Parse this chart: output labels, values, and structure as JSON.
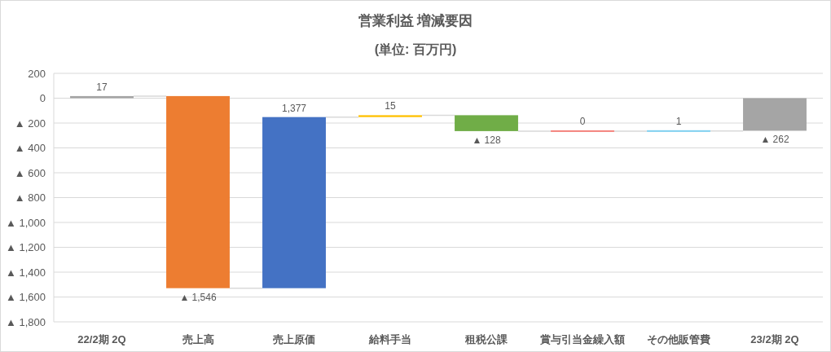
{
  "chart_data": {
    "type": "bar",
    "title": "営業利益 増減要因",
    "subtitle": "(単位: 百万円)",
    "categories": [
      "22/2期 2Q",
      "売上高",
      "売上原価",
      "給料手当",
      "租税公課",
      "賞与引当金繰入額",
      "その他販管費",
      "23/2期 2Q"
    ],
    "values": [
      17,
      -1546,
      1377,
      15,
      -128,
      0,
      1,
      -262
    ],
    "base": [
      0,
      17,
      -1529,
      -152,
      -137,
      -265,
      -265,
      0
    ],
    "colors": [
      "#a5a5a5",
      "#ed7d31",
      "#4472c4",
      "#ffc000",
      "#70ad47",
      "#f4837d",
      "#7fd0f0",
      "#a5a5a5"
    ],
    "value_labels": [
      "17",
      "▲ 1,546",
      "1,377",
      "15",
      "▲ 128",
      "0",
      "1",
      "▲ 262"
    ],
    "ylim": [
      -1800,
      200
    ],
    "yticks": [
      200,
      0,
      {
        "value": -200,
        "label": "▲ 200"
      },
      {
        "value": -400,
        "label": "▲ 400"
      },
      {
        "value": -600,
        "label": "▲ 600"
      },
      {
        "value": -800,
        "label": "▲ 800"
      },
      {
        "value": -1000,
        "label": "▲ 1,000"
      },
      {
        "value": -1200,
        "label": "▲ 1,200"
      },
      {
        "value": -1400,
        "label": "▲ 1,400"
      },
      {
        "value": -1600,
        "label": "▲ 1,600"
      },
      {
        "value": -1800,
        "label": "▲ 1,800"
      }
    ],
    "grid": "y"
  }
}
